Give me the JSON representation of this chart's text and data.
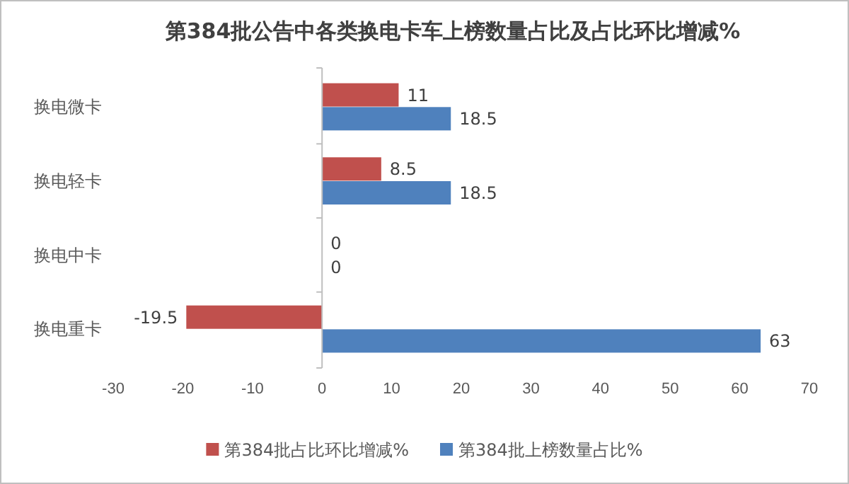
{
  "chart_data": {
    "type": "bar",
    "orientation": "horizontal",
    "title": "第384批公告中各类换电卡车上榜数量占比及占比环比增减%",
    "categories": [
      "换电微卡",
      "换电轻卡",
      "换电中卡",
      "换电重卡"
    ],
    "series": [
      {
        "name": "第384批占比环比增减%",
        "color": "#c0504d",
        "values": [
          11,
          8.5,
          0,
          -19.5
        ]
      },
      {
        "name": "第384批上榜数量占比%",
        "color": "#4f81bd",
        "values": [
          18.5,
          18.5,
          0,
          63
        ]
      }
    ],
    "xlim": [
      -30,
      70
    ],
    "xticks": [
      -30,
      -20,
      -10,
      0,
      10,
      20,
      30,
      40,
      50,
      60,
      70
    ],
    "data_labels": true,
    "legend": "bottom"
  }
}
